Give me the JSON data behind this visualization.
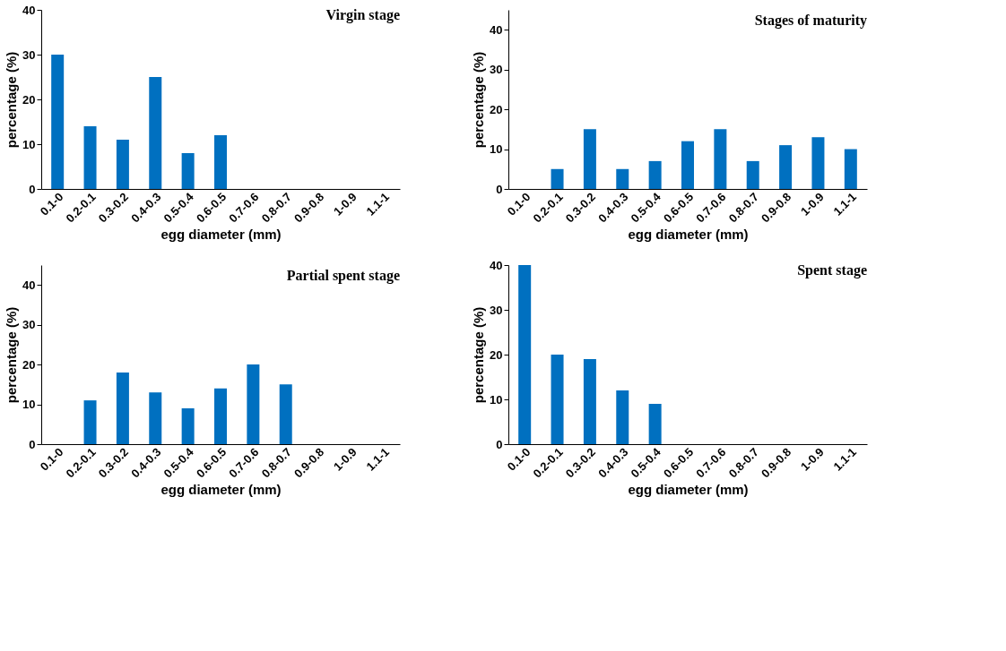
{
  "chart_data": [
    {
      "type": "bar",
      "title": "Virgin stage",
      "xlabel": "egg diameter (mm)",
      "ylabel": "percentage (%)",
      "categories": [
        "0.1-0",
        "0.2-0.1",
        "0.3-0.2",
        "0.4-0.3",
        "0.5-0.4",
        "0.6-0.5",
        "0.7-0.6",
        "0.8-0.7",
        "0.9-0.8",
        "1-0.9",
        "1.1-1"
      ],
      "values": [
        30,
        14,
        11,
        25,
        8,
        12,
        0,
        0,
        0,
        0,
        0
      ],
      "color": "#0070c0",
      "ylim": [
        0,
        40
      ],
      "yticks": [
        0,
        10,
        20,
        30,
        40
      ],
      "grid": false
    },
    {
      "type": "bar",
      "title": "Stages of maturity",
      "xlabel": "egg diameter (mm)",
      "ylabel": "percentage (%)",
      "categories": [
        "0.1-0",
        "0.2-0.1",
        "0.3-0.2",
        "0.4-0.3",
        "0.5-0.4",
        "0.6-0.5",
        "0.7-0.6",
        "0.8-0.7",
        "0.9-0.8",
        "1-0.9",
        "1.1-1"
      ],
      "values": [
        0,
        5,
        15,
        5,
        7,
        12,
        15,
        7,
        11,
        13,
        10
      ],
      "color": "#0070c0",
      "ylim": [
        0,
        45
      ],
      "yticks": [
        0,
        10,
        20,
        30,
        40
      ],
      "grid": false
    },
    {
      "type": "bar",
      "title": "Partial spent stage",
      "xlabel": "egg diameter (mm)",
      "ylabel": "percentage (%)",
      "categories": [
        "0.1-0",
        "0.2-0.1",
        "0.3-0.2",
        "0.4-0.3",
        "0.5-0.4",
        "0.6-0.5",
        "0.7-0.6",
        "0.8-0.7",
        "0.9-0.8",
        "1-0.9",
        "1.1-1"
      ],
      "values": [
        0,
        11,
        18,
        13,
        9,
        14,
        20,
        15,
        0,
        0,
        0
      ],
      "color": "#0070c0",
      "ylim": [
        0,
        45
      ],
      "yticks": [
        0,
        10,
        20,
        30,
        40
      ],
      "grid": false
    },
    {
      "type": "bar",
      "title": "Spent stage",
      "xlabel": "egg diameter (mm)",
      "ylabel": "percentage (%)",
      "categories": [
        "0.1-0",
        "0.2-0.1",
        "0.3-0.2",
        "0.4-0.3",
        "0.5-0.4",
        "0.6-0.5",
        "0.7-0.6",
        "0.8-0.7",
        "0.9-0.8",
        "1-0.9",
        "1.1-1"
      ],
      "values": [
        40,
        20,
        19,
        12,
        9,
        0,
        0,
        0,
        0,
        0,
        0
      ],
      "color": "#0070c0",
      "ylim": [
        0,
        40
      ],
      "yticks": [
        0,
        10,
        20,
        30,
        40
      ],
      "grid": false
    }
  ]
}
